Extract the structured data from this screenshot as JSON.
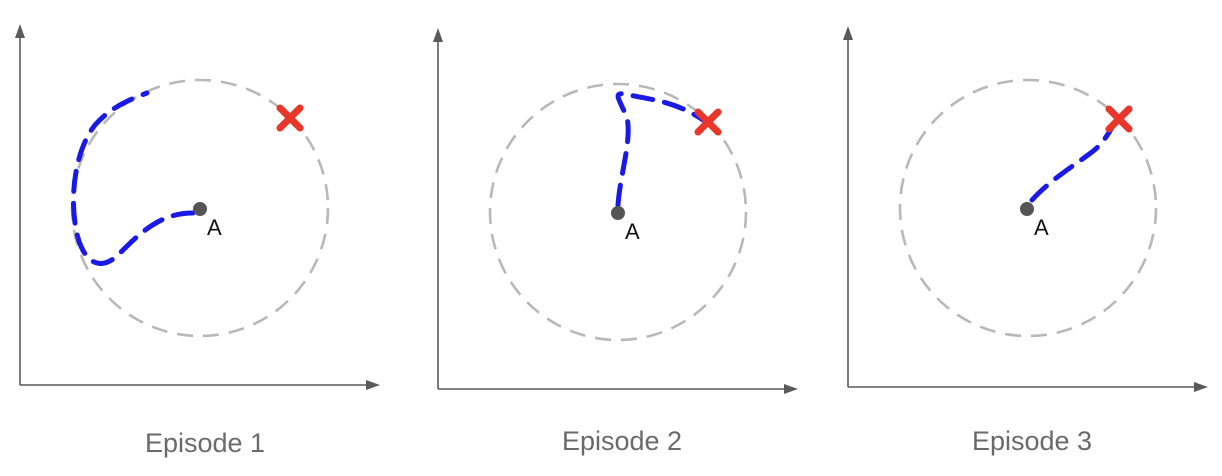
{
  "colors": {
    "trajectory": "#1a1ae6",
    "goal": "#e8362a",
    "start_point": "#555555",
    "boundary": "#b8b8b8",
    "axis": "#5a5a5a"
  },
  "icons": {
    "goal": "red-x-mark",
    "start": "gray-dot"
  },
  "panels": [
    {
      "caption": "Episode 1",
      "point_label": "A"
    },
    {
      "caption": "Episode 2",
      "point_label": "A"
    },
    {
      "caption": "Episode 3",
      "point_label": "A"
    }
  ]
}
